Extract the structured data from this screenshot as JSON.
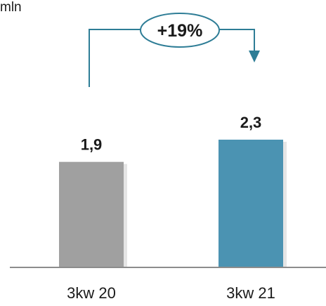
{
  "unit_label": "mln",
  "chart_data": {
    "type": "bar",
    "categories": [
      "3kw 20",
      "3kw 21"
    ],
    "values": [
      1.9,
      2.3
    ],
    "value_labels": [
      "1,9",
      "2,3"
    ],
    "bar_colors": [
      "#a0a0a0",
      "#4b93b2"
    ],
    "ylim": [
      0,
      2.3
    ],
    "title": "",
    "xlabel": "",
    "ylabel": "mln",
    "grid": false,
    "annotation": {
      "text": "+19%",
      "from_category": "3kw 20",
      "to_category": "3kw 21",
      "color": "#2e7d96"
    }
  },
  "colors": {
    "axis": "#8c8c8c",
    "text": "#1a1a1a",
    "bar_shadow": "#cfcfcf"
  }
}
